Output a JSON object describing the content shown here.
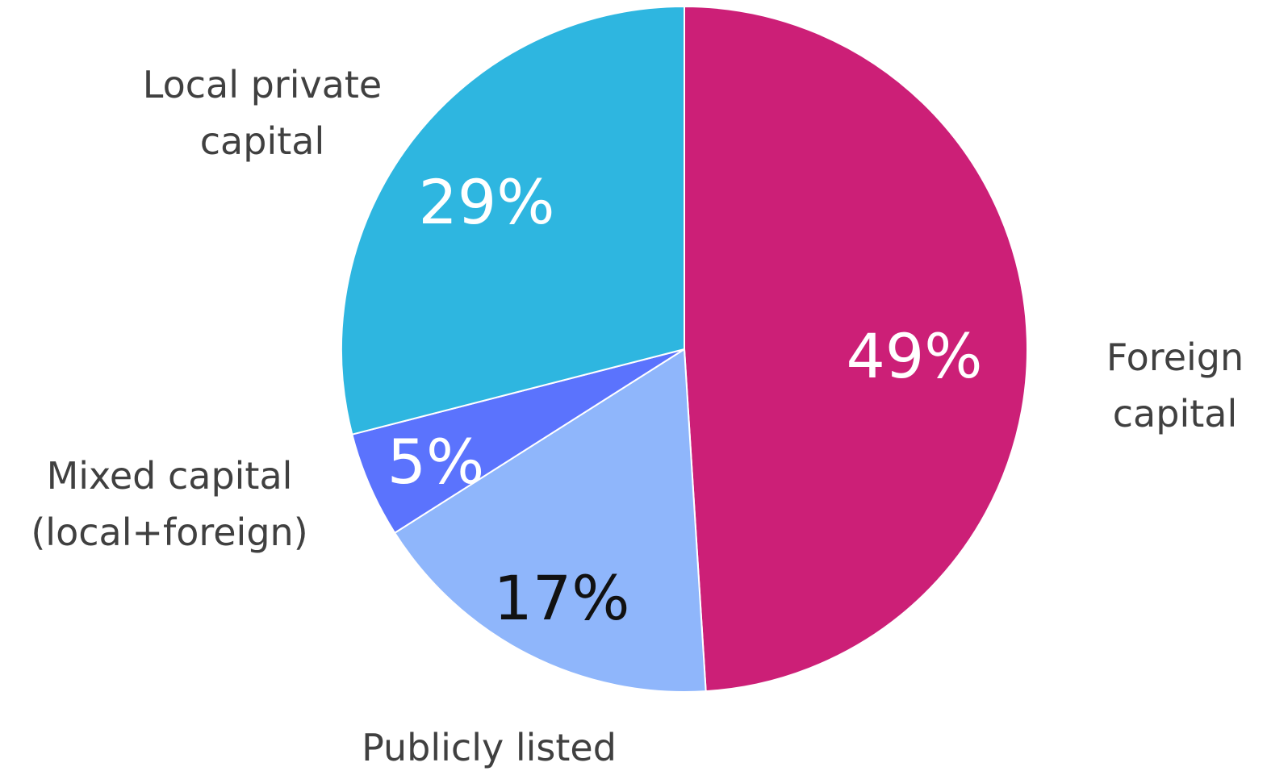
{
  "chart_data": {
    "type": "pie",
    "categories": [
      "Foreign capital",
      "Publicly listed",
      "Mixed capital (local+foreign)",
      "Local private capital"
    ],
    "values": [
      49,
      17,
      5,
      29
    ],
    "value_labels": [
      "49%",
      "17%",
      "5%",
      "29%"
    ],
    "colors": [
      "#cc1f77",
      "#8fb6fb",
      "#5b73fd",
      "#2eb6e0"
    ],
    "label_colors": [
      "#ffffff",
      "#111111",
      "#ffffff",
      "#ffffff"
    ]
  }
}
